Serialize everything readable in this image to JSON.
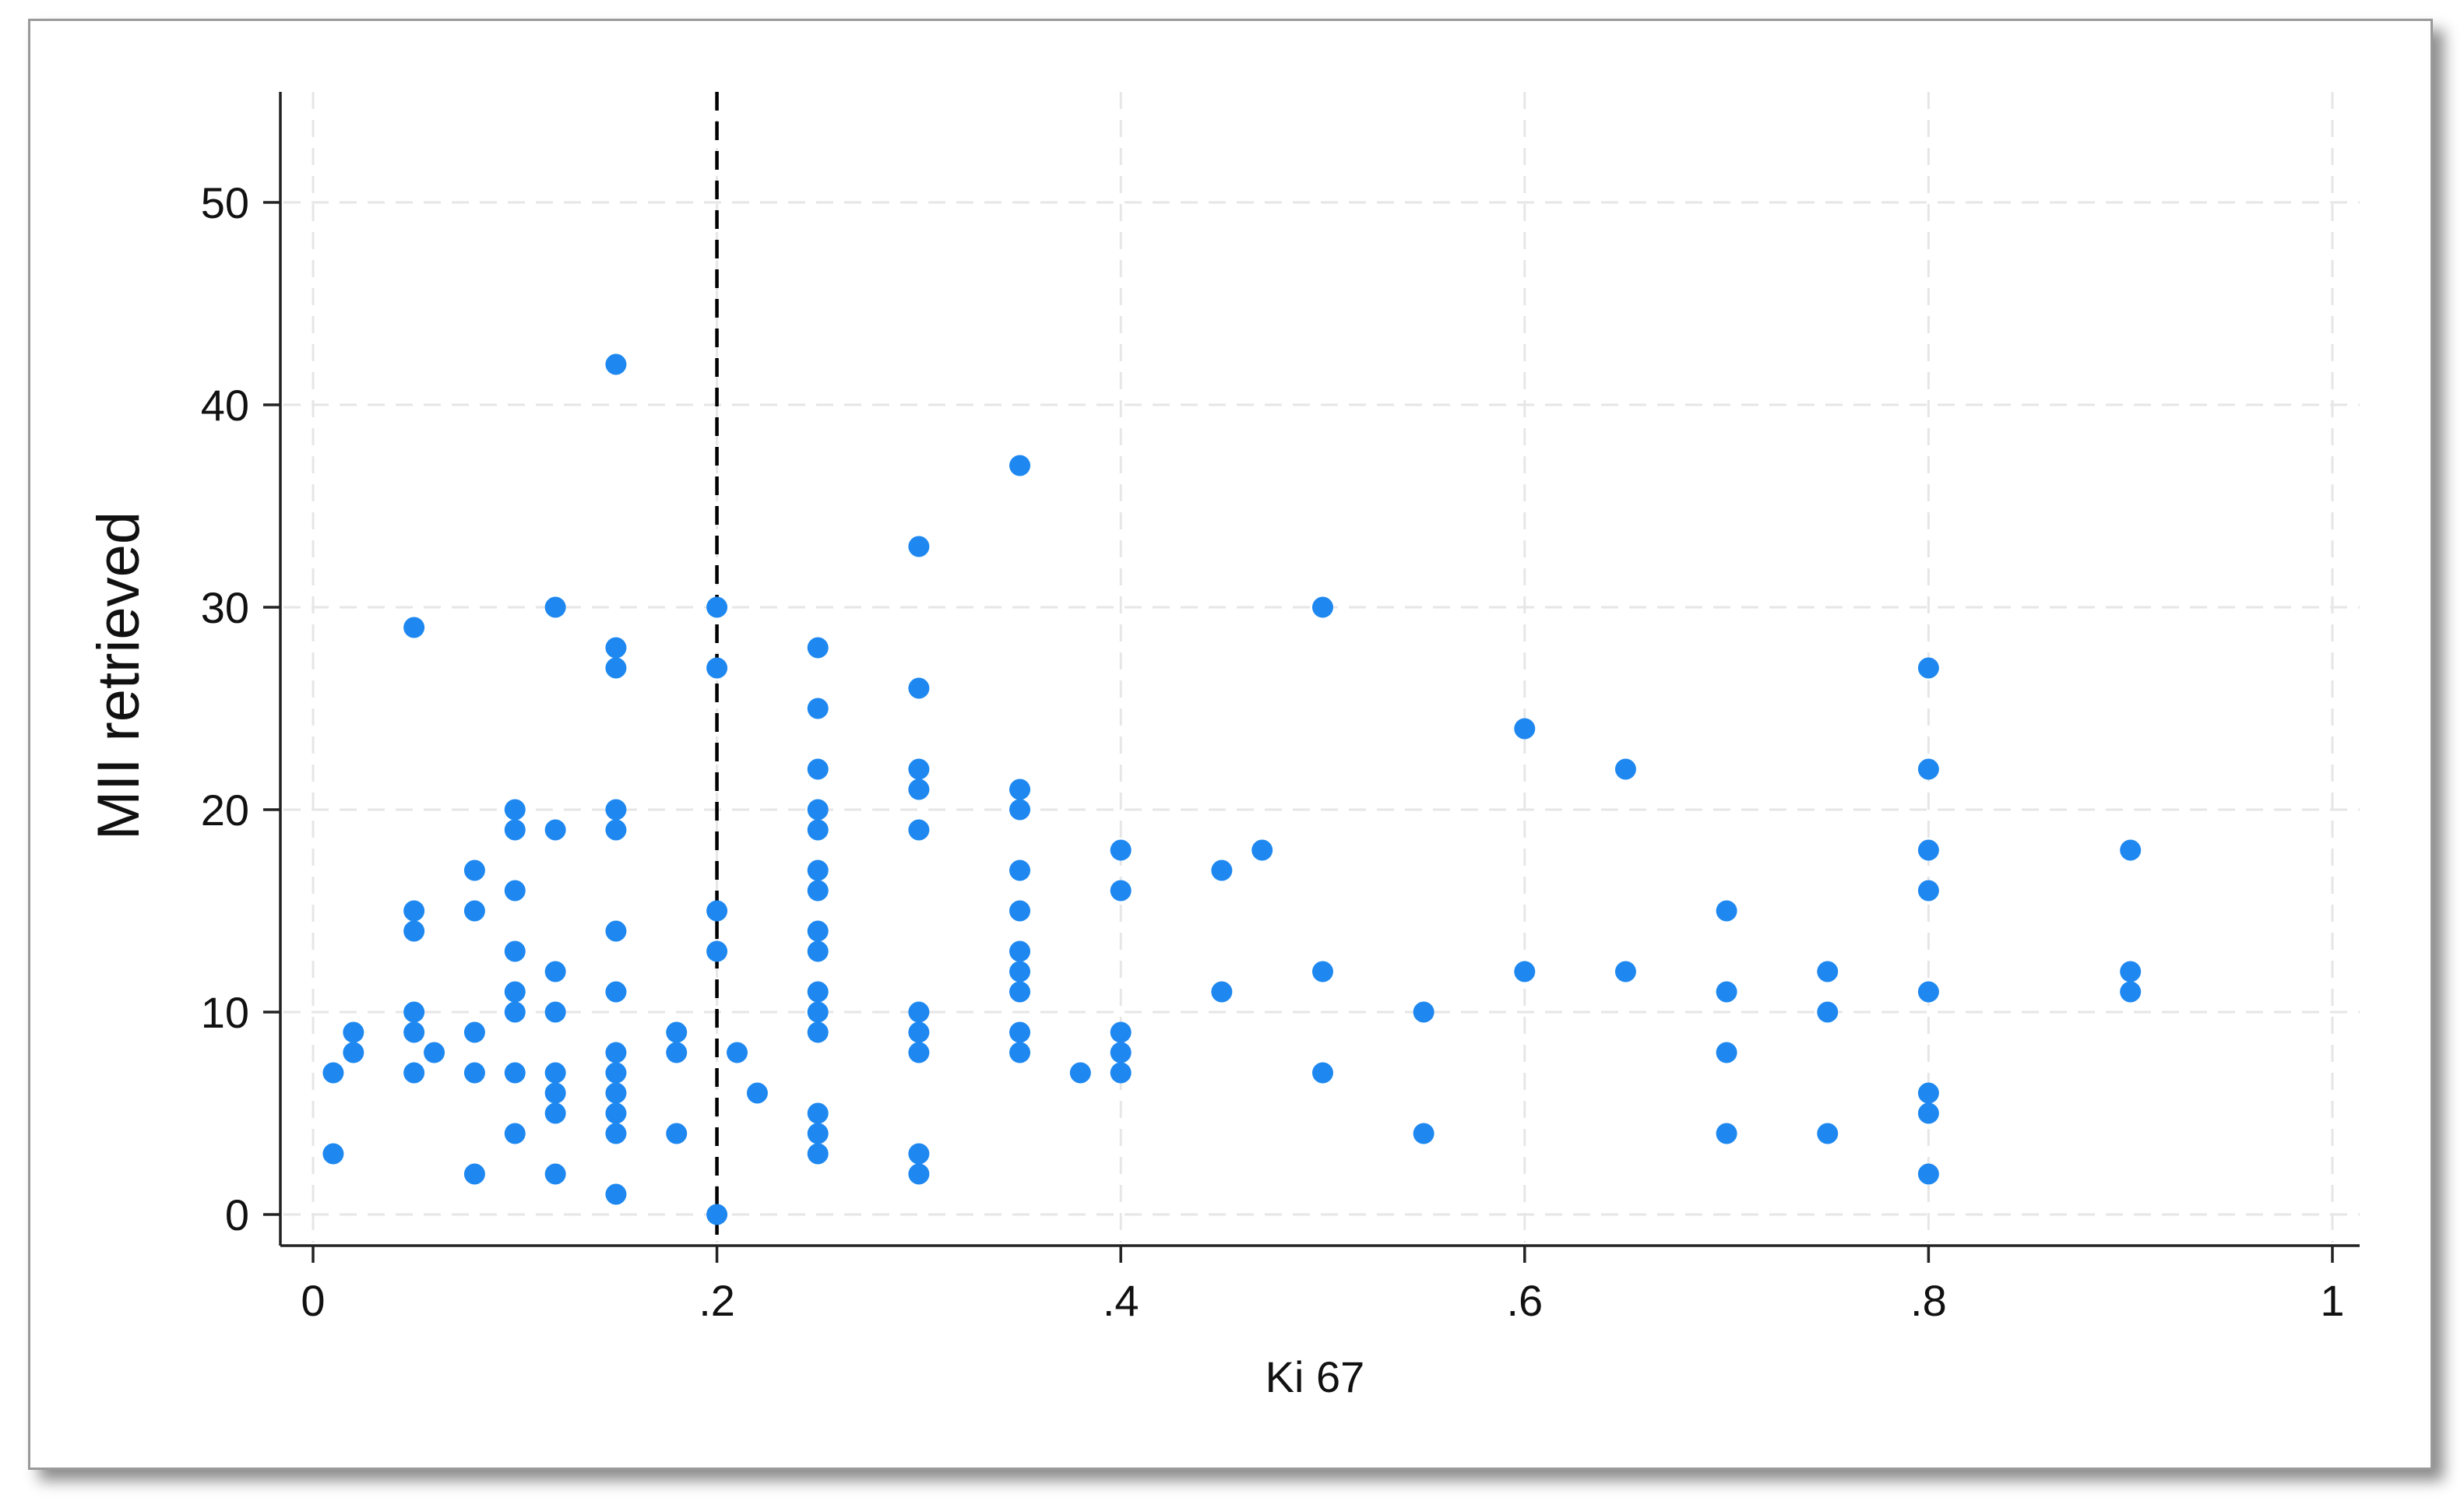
{
  "chart_data": {
    "type": "scatter",
    "title": "",
    "xlabel": "Ki 67",
    "ylabel": "MII retrieved",
    "xlim": [
      0,
      1
    ],
    "ylim": [
      0,
      50
    ],
    "x_ticks": [
      {
        "value": 0,
        "label": "0"
      },
      {
        "value": 0.2,
        "label": ".2"
      },
      {
        "value": 0.4,
        "label": ".4"
      },
      {
        "value": 0.6,
        "label": ".6"
      },
      {
        "value": 0.8,
        "label": ".8"
      },
      {
        "value": 1,
        "label": "1"
      }
    ],
    "y_ticks": [
      {
        "value": 0,
        "label": "0"
      },
      {
        "value": 10,
        "label": "10"
      },
      {
        "value": 20,
        "label": "20"
      },
      {
        "value": 30,
        "label": "30"
      },
      {
        "value": 40,
        "label": "40"
      },
      {
        "value": 50,
        "label": "50"
      }
    ],
    "grid": true,
    "reference_line": {
      "axis": "x",
      "value": 0.2,
      "style": "dashed",
      "color": "#000000"
    },
    "marker_color": "#1e88f0",
    "points": [
      [
        0.01,
        7
      ],
      [
        0.01,
        3
      ],
      [
        0.02,
        9
      ],
      [
        0.02,
        8
      ],
      [
        0.05,
        29
      ],
      [
        0.05,
        15
      ],
      [
        0.05,
        14
      ],
      [
        0.05,
        10
      ],
      [
        0.05,
        9
      ],
      [
        0.05,
        7
      ],
      [
        0.06,
        8
      ],
      [
        0.08,
        17
      ],
      [
        0.08,
        15
      ],
      [
        0.08,
        9
      ],
      [
        0.08,
        7
      ],
      [
        0.08,
        2
      ],
      [
        0.1,
        20
      ],
      [
        0.1,
        19
      ],
      [
        0.1,
        16
      ],
      [
        0.1,
        13
      ],
      [
        0.1,
        11
      ],
      [
        0.1,
        10
      ],
      [
        0.1,
        7
      ],
      [
        0.1,
        4
      ],
      [
        0.12,
        30
      ],
      [
        0.12,
        19
      ],
      [
        0.12,
        12
      ],
      [
        0.12,
        10
      ],
      [
        0.12,
        7
      ],
      [
        0.12,
        6
      ],
      [
        0.12,
        5
      ],
      [
        0.12,
        2
      ],
      [
        0.15,
        42
      ],
      [
        0.15,
        28
      ],
      [
        0.15,
        27
      ],
      [
        0.15,
        20
      ],
      [
        0.15,
        19
      ],
      [
        0.15,
        14
      ],
      [
        0.15,
        11
      ],
      [
        0.15,
        8
      ],
      [
        0.15,
        7
      ],
      [
        0.15,
        6
      ],
      [
        0.15,
        5
      ],
      [
        0.15,
        4
      ],
      [
        0.15,
        1
      ],
      [
        0.18,
        9
      ],
      [
        0.18,
        8
      ],
      [
        0.18,
        4
      ],
      [
        0.2,
        30
      ],
      [
        0.2,
        27
      ],
      [
        0.2,
        15
      ],
      [
        0.2,
        13
      ],
      [
        0.2,
        0
      ],
      [
        0.21,
        8
      ],
      [
        0.22,
        6
      ],
      [
        0.25,
        28
      ],
      [
        0.25,
        25
      ],
      [
        0.25,
        22
      ],
      [
        0.25,
        20
      ],
      [
        0.25,
        19
      ],
      [
        0.25,
        17
      ],
      [
        0.25,
        16
      ],
      [
        0.25,
        14
      ],
      [
        0.25,
        13
      ],
      [
        0.25,
        11
      ],
      [
        0.25,
        10
      ],
      [
        0.25,
        9
      ],
      [
        0.25,
        5
      ],
      [
        0.25,
        4
      ],
      [
        0.25,
        3
      ],
      [
        0.3,
        33
      ],
      [
        0.3,
        26
      ],
      [
        0.3,
        22
      ],
      [
        0.3,
        21
      ],
      [
        0.3,
        19
      ],
      [
        0.3,
        10
      ],
      [
        0.3,
        9
      ],
      [
        0.3,
        8
      ],
      [
        0.3,
        3
      ],
      [
        0.3,
        2
      ],
      [
        0.35,
        37
      ],
      [
        0.35,
        21
      ],
      [
        0.35,
        20
      ],
      [
        0.35,
        17
      ],
      [
        0.35,
        15
      ],
      [
        0.35,
        13
      ],
      [
        0.35,
        12
      ],
      [
        0.35,
        11
      ],
      [
        0.35,
        9
      ],
      [
        0.35,
        8
      ],
      [
        0.38,
        7
      ],
      [
        0.4,
        18
      ],
      [
        0.4,
        16
      ],
      [
        0.4,
        9
      ],
      [
        0.4,
        8
      ],
      [
        0.4,
        7
      ],
      [
        0.45,
        17
      ],
      [
        0.45,
        11
      ],
      [
        0.47,
        18
      ],
      [
        0.5,
        30
      ],
      [
        0.5,
        12
      ],
      [
        0.5,
        7
      ],
      [
        0.55,
        10
      ],
      [
        0.55,
        4
      ],
      [
        0.6,
        24
      ],
      [
        0.6,
        12
      ],
      [
        0.65,
        22
      ],
      [
        0.65,
        12
      ],
      [
        0.7,
        15
      ],
      [
        0.7,
        11
      ],
      [
        0.7,
        8
      ],
      [
        0.7,
        4
      ],
      [
        0.75,
        12
      ],
      [
        0.75,
        10
      ],
      [
        0.75,
        4
      ],
      [
        0.8,
        27
      ],
      [
        0.8,
        22
      ],
      [
        0.8,
        18
      ],
      [
        0.8,
        16
      ],
      [
        0.8,
        11
      ],
      [
        0.8,
        6
      ],
      [
        0.8,
        5
      ],
      [
        0.8,
        2
      ],
      [
        0.9,
        18
      ],
      [
        0.9,
        12
      ],
      [
        0.9,
        11
      ]
    ]
  }
}
